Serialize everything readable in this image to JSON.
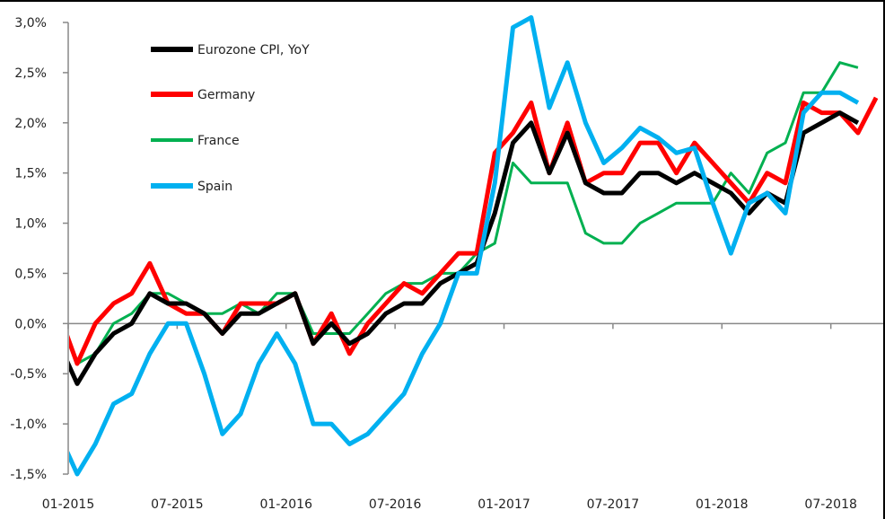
{
  "chart_data": {
    "type": "line",
    "title": "",
    "xlabel": "",
    "ylabel": "",
    "ylim": [
      -1.5,
      3.0
    ],
    "yticks": [
      "-1,5%",
      "-1,0%",
      "-0,5%",
      "0,0%",
      "0,5%",
      "1,0%",
      "1,5%",
      "2,0%",
      "2,5%",
      "3,0%"
    ],
    "ytick_values": [
      -1.5,
      -1.0,
      -0.5,
      0.0,
      0.5,
      1.0,
      1.5,
      2.0,
      2.5,
      3.0
    ],
    "xticks": [
      "01-2015",
      "07-2015",
      "01-2016",
      "07-2016",
      "01-2017",
      "07-2017",
      "01-2018",
      "07-2018"
    ],
    "x_start": "12-2014",
    "x_unit": "month",
    "legend_position": "top-left",
    "series": [
      {
        "name": "Eurozone CPI, YoY",
        "color": "#000000",
        "values": [
          -0.2,
          -0.6,
          -0.3,
          -0.1,
          0.0,
          0.3,
          0.2,
          0.2,
          0.1,
          -0.1,
          0.1,
          0.1,
          0.2,
          0.3,
          -0.2,
          0.0,
          -0.2,
          -0.1,
          0.1,
          0.2,
          0.2,
          0.4,
          0.5,
          0.6,
          1.1,
          1.8,
          2.0,
          1.5,
          1.9,
          1.4,
          1.3,
          1.3,
          1.5,
          1.5,
          1.4,
          1.5,
          1.4,
          1.3,
          1.1,
          1.3,
          1.2,
          1.9,
          2.0,
          2.1,
          2.0
        ]
      },
      {
        "name": "Germany",
        "color": "#ff0000",
        "values": [
          0.1,
          -0.4,
          0.0,
          0.2,
          0.3,
          0.6,
          0.2,
          0.1,
          0.1,
          -0.1,
          0.2,
          0.2,
          0.2,
          0.3,
          -0.2,
          0.1,
          -0.3,
          0.0,
          0.2,
          0.4,
          0.3,
          0.5,
          0.7,
          0.7,
          1.7,
          1.9,
          2.2,
          1.5,
          2.0,
          1.4,
          1.5,
          1.5,
          1.8,
          1.8,
          1.5,
          1.8,
          1.6,
          1.4,
          1.2,
          1.5,
          1.4,
          2.2,
          2.1,
          2.1,
          1.9,
          2.25
        ]
      },
      {
        "name": "France",
        "color": "#00b050",
        "values": [
          0.1,
          -0.4,
          -0.3,
          0.0,
          0.1,
          0.3,
          0.3,
          0.2,
          0.1,
          0.1,
          0.2,
          0.1,
          0.3,
          0.3,
          -0.1,
          -0.1,
          -0.1,
          0.1,
          0.3,
          0.4,
          0.4,
          0.5,
          0.5,
          0.7,
          0.8,
          1.6,
          1.4,
          1.4,
          1.4,
          0.9,
          0.8,
          0.8,
          1.0,
          1.1,
          1.2,
          1.2,
          1.2,
          1.5,
          1.3,
          1.7,
          1.8,
          2.3,
          2.3,
          2.6,
          2.55
        ]
      },
      {
        "name": "Spain",
        "color": "#00b0f0",
        "values": [
          -1.1,
          -1.5,
          -1.2,
          -0.8,
          -0.7,
          -0.3,
          0.0,
          0.0,
          -0.5,
          -1.1,
          -0.9,
          -0.4,
          -0.1,
          -0.4,
          -1.0,
          -1.0,
          -1.2,
          -1.1,
          -0.9,
          -0.7,
          -0.3,
          0.0,
          0.5,
          0.5,
          1.4,
          2.95,
          3.05,
          2.15,
          2.6,
          2.0,
          1.6,
          1.75,
          1.95,
          1.85,
          1.7,
          1.75,
          1.2,
          0.7,
          1.2,
          1.3,
          1.1,
          2.1,
          2.3,
          2.3,
          2.2
        ]
      }
    ]
  }
}
